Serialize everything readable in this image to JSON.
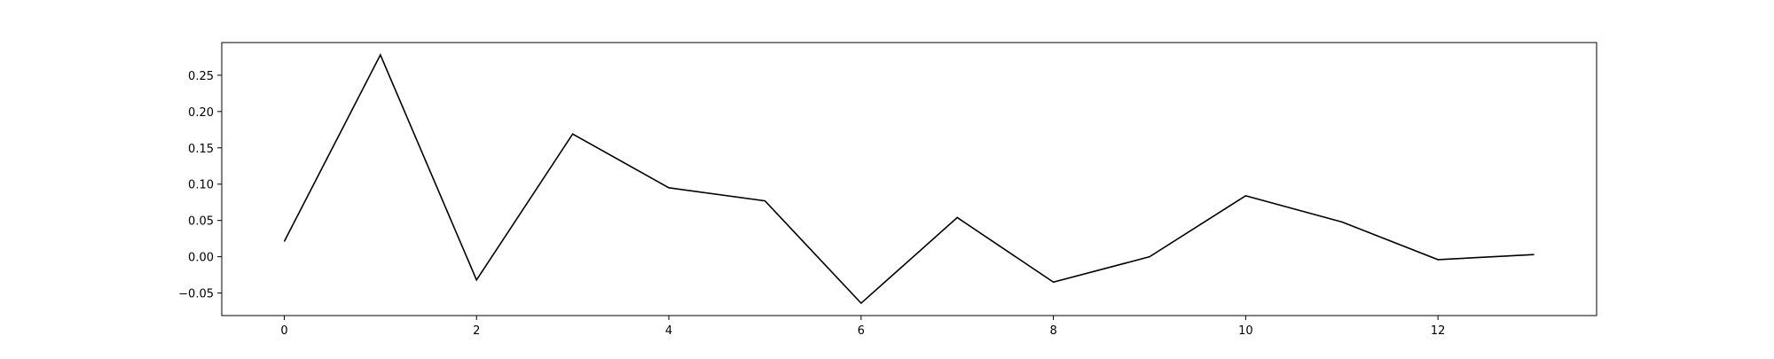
{
  "chart_data": {
    "type": "line",
    "title": "",
    "xlabel": "",
    "ylabel": "",
    "x": [
      0,
      1,
      2,
      3,
      4,
      5,
      6,
      7,
      8,
      9,
      10,
      11,
      12,
      13
    ],
    "series": [
      {
        "values": [
          0.021,
          0.278,
          -0.032,
          0.169,
          0.095,
          0.077,
          -0.064,
          0.054,
          -0.035,
          0.0,
          0.084,
          0.048,
          -0.004,
          0.003
        ],
        "color": "#000000"
      }
    ],
    "xlim": [
      -0.65,
      13.65
    ],
    "ylim": [
      -0.081,
      0.295
    ],
    "xticks": [
      0,
      2,
      4,
      6,
      8,
      10,
      12
    ],
    "xtick_labels": [
      "0",
      "2",
      "4",
      "6",
      "8",
      "10",
      "12"
    ],
    "yticks": [
      -0.05,
      0.0,
      0.05,
      0.1,
      0.15,
      0.2,
      0.25
    ],
    "ytick_labels": [
      "−0.05",
      "0.00",
      "0.05",
      "0.10",
      "0.15",
      "0.20",
      "0.25"
    ],
    "grid": false,
    "legend": "none"
  }
}
